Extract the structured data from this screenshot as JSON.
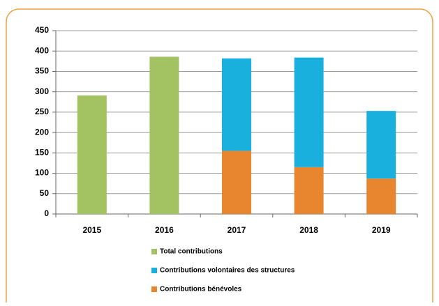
{
  "chart_data": {
    "type": "stacked_bar",
    "categories": [
      "2015",
      "2016",
      "2017",
      "2018",
      "2019"
    ],
    "series": [
      {
        "name": "Total contributions",
        "color": "#a3c262",
        "values": [
          291,
          386,
          null,
          null,
          null
        ]
      },
      {
        "name": "Contributions volontaires des structures",
        "color": "#1ab0dd",
        "values": [
          null,
          null,
          227,
          269,
          166
        ]
      },
      {
        "name": "Contributions bénévoles",
        "color": "#e8862f",
        "values": [
          null,
          null,
          155,
          115,
          87
        ]
      }
    ],
    "ylim": [
      0,
      450
    ],
    "yticks": [
      0,
      50,
      100,
      150,
      200,
      250,
      300,
      350,
      400,
      450
    ],
    "grid": true,
    "legend": "bottom"
  }
}
